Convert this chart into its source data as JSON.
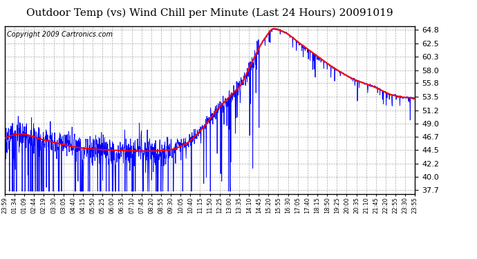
{
  "title": "Outdoor Temp (vs) Wind Chill per Minute (Last 24 Hours) 20091019",
  "copyright": "Copyright 2009 Cartronics.com",
  "yticks": [
    37.7,
    40.0,
    42.2,
    44.5,
    46.7,
    49.0,
    51.2,
    53.5,
    55.8,
    58.0,
    60.3,
    62.5,
    64.8
  ],
  "xtick_labels": [
    "23:59",
    "01:34",
    "01:09",
    "02:44",
    "02:19",
    "03:30",
    "03:05",
    "04:40",
    "04:15",
    "05:50",
    "05:25",
    "06:00",
    "06:35",
    "07:10",
    "07:45",
    "08:20",
    "08:55",
    "09:30",
    "10:05",
    "10:40",
    "11:15",
    "11:50",
    "12:25",
    "13:00",
    "13:35",
    "14:10",
    "14:45",
    "15:20",
    "15:55",
    "16:30",
    "17:05",
    "17:40",
    "18:15",
    "18:50",
    "19:25",
    "20:00",
    "20:35",
    "21:10",
    "21:45",
    "22:20",
    "22:55",
    "23:30",
    "23:55"
  ],
  "ylim": [
    37.0,
    65.5
  ],
  "bg_color": "#ffffff",
  "grid_color": "#aaaaaa",
  "blue_color": "#0000ff",
  "red_color": "#ff0000",
  "title_fontsize": 11,
  "copyright_fontsize": 7
}
